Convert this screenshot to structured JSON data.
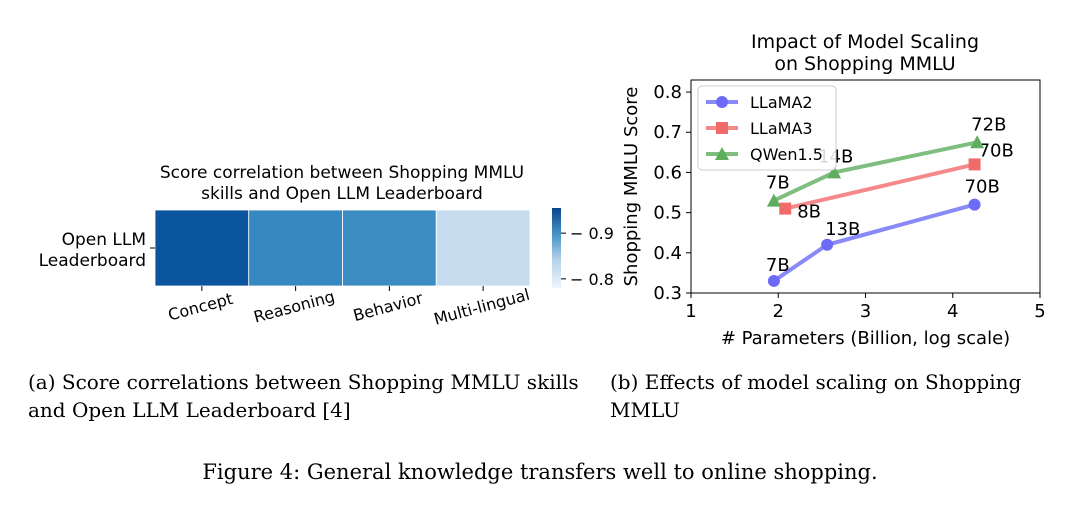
{
  "chart_data": [
    {
      "type": "heatmap",
      "title": "Score correlation between Shopping MMLU skills and Open LLM Leaderboard",
      "title_lines": [
        "Score correlation between Shopping MMLU",
        "skills and Open LLM Leaderboard"
      ],
      "row_label_lines": [
        "Open LLM",
        "Leaderboard"
      ],
      "columns": [
        "Concept",
        "Reasoning",
        "Behavior",
        "Multi-lingual"
      ],
      "values": [
        [
          0.95,
          0.89,
          0.885,
          0.79
        ]
      ],
      "colorbar": {
        "min": 0.78,
        "max": 0.955,
        "ticks": [
          0.8,
          0.9
        ],
        "tick_labels": [
          "0.8",
          "0.9"
        ]
      },
      "colors": [
        "#0b559f",
        "#3787c0",
        "#3d8dc4",
        "#c7dcef"
      ]
    },
    {
      "type": "line",
      "title": "Impact of Model Scaling on Shopping MMLU",
      "title_lines": [
        "Impact of Model Scaling",
        "on Shopping MMLU"
      ],
      "xlabel": "# Parameters (Billion, log scale)",
      "ylabel": "Shopping MMLU Score",
      "xlim": [
        1,
        5
      ],
      "ylim": [
        0.3,
        0.83
      ],
      "xticks": [
        "1",
        "2",
        "3",
        "4",
        "5"
      ],
      "yticks": [
        "0.3",
        "0.4",
        "0.5",
        "0.6",
        "0.7",
        "0.8"
      ],
      "legend": "top-left",
      "series": [
        {
          "name": "LLaMA2",
          "color": "#6b6bf5",
          "marker": "circle",
          "points": [
            {
              "x": 1.95,
              "y": 0.33,
              "label": "7B"
            },
            {
              "x": 2.56,
              "y": 0.42,
              "label": "13B"
            },
            {
              "x": 4.25,
              "y": 0.52,
              "label": "70B"
            }
          ]
        },
        {
          "name": "LLaMA3",
          "color": "#f26b6b",
          "marker": "square",
          "points": [
            {
              "x": 2.08,
              "y": 0.51,
              "label": "8B"
            },
            {
              "x": 4.25,
              "y": 0.62,
              "label": "70B"
            }
          ]
        },
        {
          "name": "QWen1.5",
          "color": "#5fae5f",
          "marker": "triangle",
          "points": [
            {
              "x": 1.95,
              "y": 0.53,
              "label": "7B"
            },
            {
              "x": 2.64,
              "y": 0.6,
              "label": "14B"
            },
            {
              "x": 4.28,
              "y": 0.675,
              "label": "72B"
            }
          ]
        }
      ]
    }
  ],
  "captions": {
    "a": "(a) Score correlations between Shopping MMLU skills and Open LLM Leaderboard [4]",
    "b": "(b) Effects of model scaling on Shopping MMLU",
    "figure": "Figure 4: General knowledge transfers well to online shopping."
  }
}
